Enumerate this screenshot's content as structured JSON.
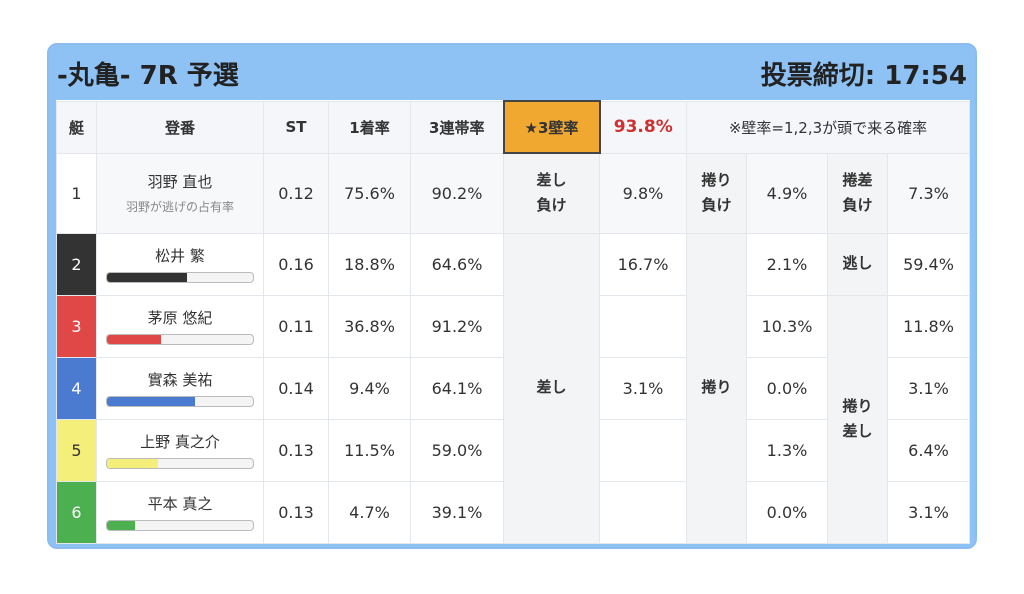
{
  "header": {
    "title": "-丸亀- 7R 予選",
    "deadline": "投票締切: 17:54"
  },
  "table": {
    "columns": [
      "艇",
      "登番",
      "ST",
      "1着率",
      "3連帯率",
      "★3壁率",
      "93.8%",
      "※壁率=1,2,3が頭で来る確率"
    ],
    "rows": [
      {
        "boat": "1",
        "name": "羽野 直也",
        "note": "羽野が逃げの占有率",
        "st": "0.12",
        "win": "75.6%",
        "top3": "90.2%",
        "color": "#ffffff",
        "text": "#333333"
      },
      {
        "boat": "2",
        "name": "松井 繁",
        "bar": 55,
        "st": "0.16",
        "win": "18.8%",
        "top3": "64.6%",
        "color": "#333333",
        "text": "#ffffff"
      },
      {
        "boat": "3",
        "name": "茅原 悠紀",
        "bar": 37,
        "st": "0.11",
        "win": "36.8%",
        "top3": "91.2%",
        "color": "#e04848",
        "text": "#ffffff"
      },
      {
        "boat": "4",
        "name": "實森 美祐",
        "bar": 60,
        "st": "0.14",
        "win": "9.4%",
        "top3": "64.1%",
        "color": "#4a7bd0",
        "text": "#ffffff"
      },
      {
        "boat": "5",
        "name": "上野 真之介",
        "bar": 35,
        "st": "0.13",
        "win": "11.5%",
        "top3": "59.0%",
        "color": "#f3ef7a",
        "text": "#333333"
      },
      {
        "boat": "6",
        "name": "平本 真之",
        "bar": 19,
        "st": "0.13",
        "win": "4.7%",
        "top3": "39.1%",
        "color": "#4caf50",
        "text": "#ffffff"
      }
    ],
    "groups": [
      {
        "labels": [
          {
            "text": "差し負け",
            "span": 1
          },
          {
            "text": "差し",
            "span": 5
          }
        ],
        "values": [
          "9.8%",
          "16.7%",
          null,
          "3.1%",
          null,
          null
        ]
      },
      {
        "labels": [
          {
            "text": "捲り負け",
            "span": 1
          },
          {
            "text": "捲り",
            "span": 5
          }
        ],
        "values": [
          "4.9%",
          "2.1%",
          "10.3%",
          "0.0%",
          "1.3%",
          "0.0%"
        ]
      },
      {
        "labels": [
          {
            "text": "捲差負け",
            "span": 1
          },
          {
            "text": "逃し",
            "span": 1
          },
          {
            "text": "捲り差し",
            "span": 4
          }
        ],
        "values": [
          "7.3%",
          "59.4%",
          "11.8%",
          "3.1%",
          "6.4%",
          "3.1%"
        ]
      }
    ]
  }
}
